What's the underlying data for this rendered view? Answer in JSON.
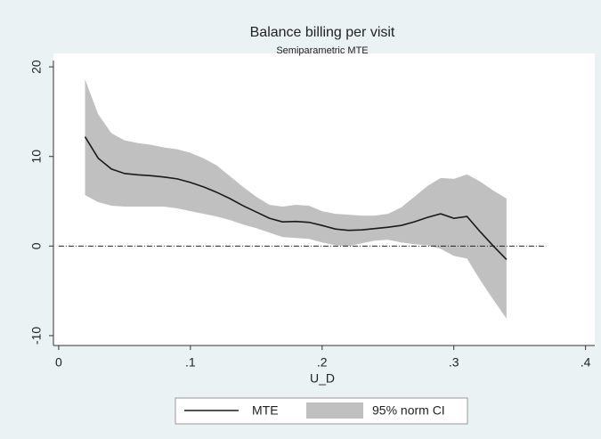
{
  "chart_data": {
    "type": "line",
    "title": "Balance billing per visit",
    "subtitle": "Semiparametric MTE",
    "x_label": "U_D",
    "x": [
      0.02,
      0.03,
      0.04,
      0.05,
      0.06,
      0.07,
      0.08,
      0.09,
      0.1,
      0.11,
      0.12,
      0.13,
      0.14,
      0.15,
      0.16,
      0.17,
      0.18,
      0.19,
      0.2,
      0.21,
      0.22,
      0.23,
      0.24,
      0.25,
      0.26,
      0.27,
      0.28,
      0.29,
      0.3,
      0.31,
      0.32,
      0.33,
      0.34
    ],
    "series": [
      {
        "name": "MTE",
        "color": "#1a1a1a",
        "values": [
          12.2,
          9.8,
          8.6,
          8.1,
          7.95,
          7.85,
          7.7,
          7.5,
          7.1,
          6.6,
          6.0,
          5.3,
          4.5,
          3.8,
          3.1,
          2.7,
          2.75,
          2.65,
          2.3,
          1.9,
          1.75,
          1.8,
          1.95,
          2.1,
          2.3,
          2.7,
          3.2,
          3.6,
          3.1,
          3.3,
          1.6,
          0.0,
          -1.5
        ]
      }
    ],
    "band": {
      "name": "95% norm CI",
      "color": "#c0c0c0",
      "upper": [
        18.6,
        14.7,
        12.6,
        11.8,
        11.5,
        11.3,
        11.0,
        10.8,
        10.4,
        9.8,
        9.0,
        7.8,
        6.6,
        5.5,
        4.6,
        4.4,
        4.6,
        4.5,
        3.9,
        3.6,
        3.5,
        3.4,
        3.4,
        3.6,
        4.3,
        5.5,
        6.7,
        7.6,
        7.5,
        8.0,
        7.2,
        6.2,
        5.3
      ],
      "lower": [
        5.7,
        4.9,
        4.5,
        4.4,
        4.4,
        4.4,
        4.4,
        4.2,
        3.9,
        3.6,
        3.3,
        2.9,
        2.4,
        2.0,
        1.5,
        1.0,
        0.9,
        0.8,
        0.4,
        0.1,
        0.0,
        0.3,
        0.6,
        0.7,
        0.4,
        0.2,
        0.1,
        -0.3,
        -1.1,
        -1.4,
        -3.8,
        -6.0,
        -8.1
      ]
    },
    "reference_line": {
      "y": 0,
      "x": [
        0,
        0.37
      ]
    },
    "xlim": [
      -0.004,
      0.407
    ],
    "ylim": [
      -11.1,
      21.5
    ],
    "xticks": [
      0,
      {
        "value": 0.1,
        "label": ".1"
      },
      {
        "value": 0.2,
        "label": ".2"
      },
      {
        "value": 0.3,
        "label": ".3"
      },
      {
        "value": 0.4,
        "label": ".4"
      }
    ],
    "yticks": [
      -10,
      0,
      10,
      20
    ]
  }
}
